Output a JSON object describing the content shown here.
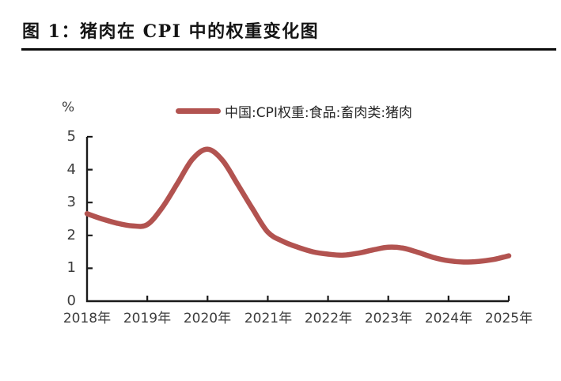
{
  "header": {
    "title": "图 1：猪肉在 CPI 中的权重变化图"
  },
  "chart": {
    "unit_label": "%",
    "legend": {
      "label": "中国:CPI权重:食品:畜肉类:猪肉",
      "line_color": "#B25350"
    },
    "y_ticks": [
      "5",
      "4",
      "3",
      "2",
      "1",
      "0"
    ],
    "x_ticks": [
      "2018年",
      "2019年",
      "2020年",
      "2021年",
      "2022年",
      "2023年",
      "2024年",
      "2025年"
    ],
    "axis_color": "#1a1a1a"
  },
  "chart_data": {
    "type": "line",
    "title": "图 1：猪肉在 CPI 中的权重变化图",
    "xlabel": "",
    "ylabel": "%",
    "xlim": [
      2018,
      2025
    ],
    "ylim": [
      0,
      5
    ],
    "x_tick_values": [
      2018,
      2019,
      2020,
      2021,
      2022,
      2023,
      2024,
      2025
    ],
    "x_tick_labels": [
      "2018年",
      "2019年",
      "2020年",
      "2021年",
      "2022年",
      "2023年",
      "2024年",
      "2025年"
    ],
    "y_tick_values": [
      0,
      1,
      2,
      3,
      4,
      5
    ],
    "grid": false,
    "legend_position": "top-center",
    "series": [
      {
        "name": "中国:CPI权重:食品:畜肉类:猪肉",
        "color": "#B25350",
        "line_width": 6.5,
        "x": [
          2018.0,
          2018.25,
          2018.5,
          2018.75,
          2019.0,
          2019.25,
          2019.5,
          2019.75,
          2020.0,
          2020.25,
          2020.5,
          2020.75,
          2021.0,
          2021.25,
          2021.5,
          2021.75,
          2022.0,
          2022.25,
          2022.5,
          2022.75,
          2023.0,
          2023.25,
          2023.5,
          2023.75,
          2024.0,
          2024.25,
          2024.5,
          2024.75,
          2025.0
        ],
        "values": [
          2.66,
          2.5,
          2.37,
          2.29,
          2.33,
          2.85,
          3.58,
          4.32,
          4.62,
          4.28,
          3.55,
          2.8,
          2.1,
          1.82,
          1.64,
          1.5,
          1.43,
          1.4,
          1.46,
          1.56,
          1.64,
          1.61,
          1.48,
          1.33,
          1.23,
          1.19,
          1.21,
          1.27,
          1.38
        ]
      }
    ]
  }
}
